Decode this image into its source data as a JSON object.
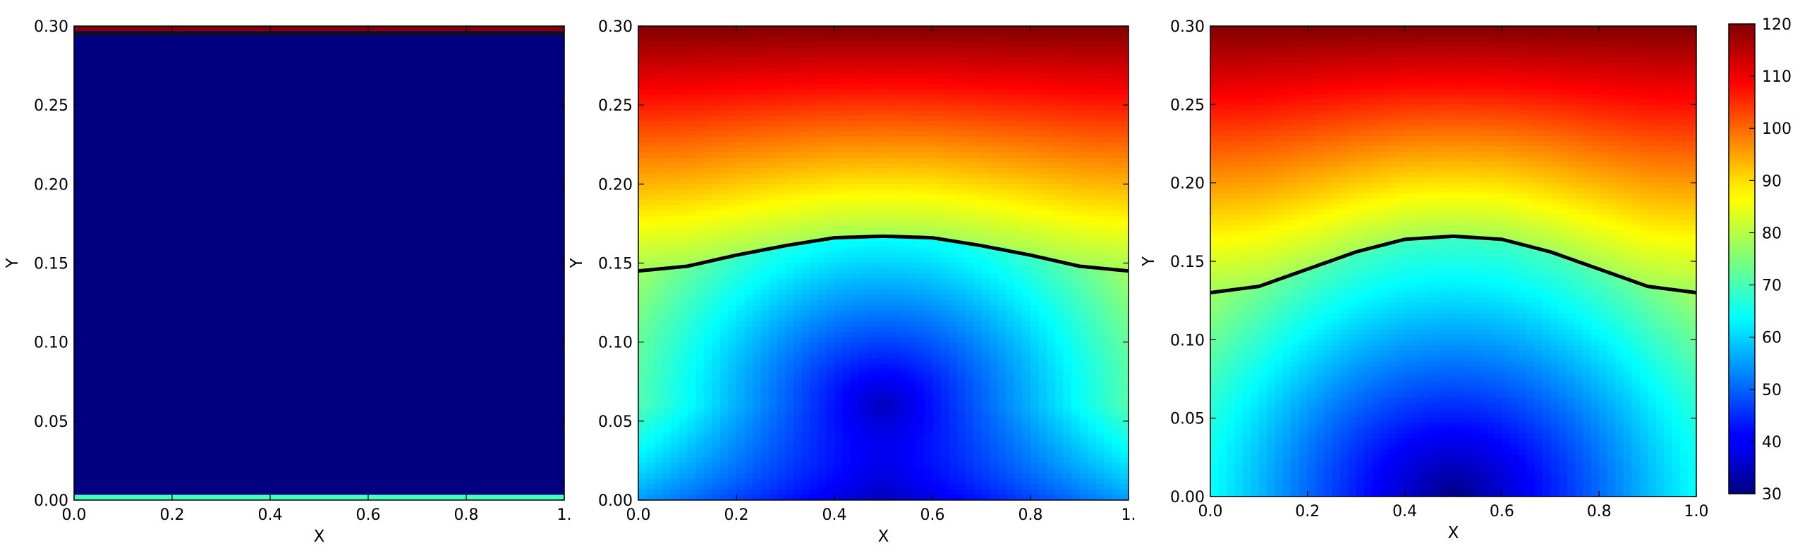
{
  "chart_data": [
    {
      "type": "heatmap",
      "colormap": "jet",
      "xlabel": "X",
      "ylabel": "Y",
      "xlim": [
        0.0,
        1.0
      ],
      "ylim": [
        0.0,
        0.3
      ],
      "xticks": [
        "0.0",
        "0.2",
        "0.4",
        "0.6",
        "0.8",
        "1."
      ],
      "yticks": [
        "0.00",
        "0.05",
        "0.10",
        "0.15",
        "0.20",
        "0.25",
        "0.30"
      ],
      "field": {
        "description_values": "temperature-like field, mostly minimum (~30) with thin hot band at top and thin warm band at bottom",
        "bottom_band": {
          "y_max": 0.004,
          "value": 70
        },
        "top_band": {
          "y_min": 0.296,
          "value": 120
        },
        "interior_value": 30
      },
      "interface_curve": null
    },
    {
      "type": "heatmap",
      "colormap": "jet",
      "xlabel": "X",
      "ylabel": "Y",
      "xlim": [
        0.0,
        1.0
      ],
      "ylim": [
        0.0,
        0.3
      ],
      "xticks": [
        "0.0",
        "0.2",
        "0.4",
        "0.6",
        "0.8",
        "1."
      ],
      "yticks": [
        "0.00",
        "0.05",
        "0.10",
        "0.15",
        "0.20",
        "0.25",
        "0.30"
      ],
      "field": {
        "value_at_top": 120,
        "value_at_interface": 78,
        "minimum_value": 35,
        "minimum_location": {
          "x": 0.5,
          "y": 0.06
        },
        "value_at_bottom_edges": 55
      },
      "interface_curve": {
        "x": [
          0.0,
          0.1,
          0.2,
          0.3,
          0.4,
          0.5,
          0.6,
          0.7,
          0.8,
          0.9,
          1.0
        ],
        "y": [
          0.145,
          0.148,
          0.155,
          0.161,
          0.166,
          0.167,
          0.166,
          0.161,
          0.155,
          0.148,
          0.145
        ]
      }
    },
    {
      "type": "heatmap",
      "colormap": "jet",
      "xlabel": "X",
      "ylabel": "Y",
      "xlim": [
        0.0,
        1.0
      ],
      "ylim": [
        0.0,
        0.3
      ],
      "xticks": [
        "0.0",
        "0.2",
        "0.4",
        "0.6",
        "0.8",
        "1.0"
      ],
      "yticks": [
        "0.00",
        "0.05",
        "0.10",
        "0.15",
        "0.20",
        "0.25",
        "0.30"
      ],
      "field": {
        "value_at_top": 120,
        "value_at_interface": 78,
        "minimum_value": 30,
        "minimum_location": {
          "x": 0.5,
          "y": 0.0
        },
        "value_at_bottom_edges": 62
      },
      "interface_curve": {
        "x": [
          0.0,
          0.1,
          0.2,
          0.3,
          0.4,
          0.5,
          0.6,
          0.7,
          0.8,
          0.9,
          1.0
        ],
        "y": [
          0.13,
          0.134,
          0.145,
          0.156,
          0.164,
          0.166,
          0.164,
          0.156,
          0.145,
          0.134,
          0.13
        ]
      }
    }
  ],
  "colorbar": {
    "colormap": "jet",
    "range": [
      30,
      120
    ],
    "ticks": [
      "30",
      "40",
      "50",
      "60",
      "70",
      "80",
      "90",
      "100",
      "110",
      "120"
    ]
  }
}
